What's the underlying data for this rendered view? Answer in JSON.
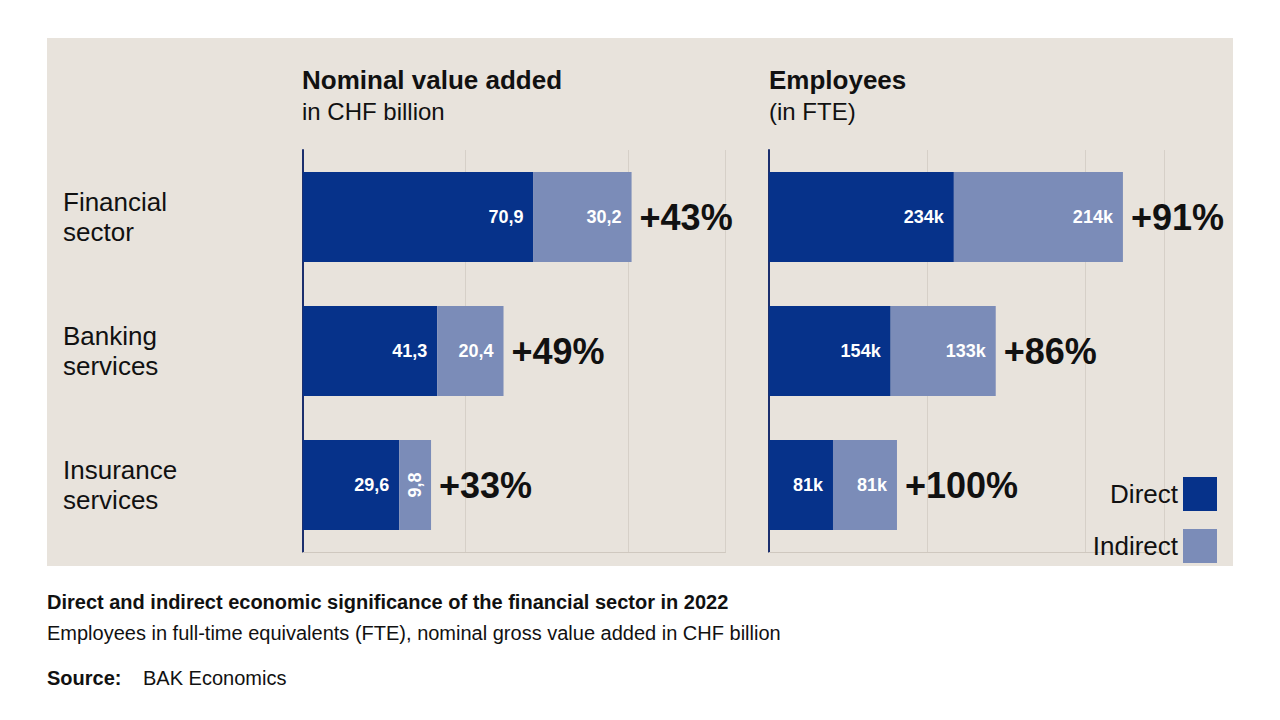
{
  "title": "Direct and indirect economic significance of the financial sector in 2022",
  "subtitle": "Employees in full-time equivalents (FTE), nominal gross value added in CHF billion",
  "source": {
    "label": "Source:",
    "text": "BAK Economics"
  },
  "chart_data": [
    {
      "type": "bar",
      "title": "Nominal value added",
      "subtitle": "in CHF billion",
      "orientation": "horizontal",
      "stacked": true,
      "data_labels": true,
      "grid": true,
      "tick_labels": "y",
      "categories": [
        "Financial sector",
        "Banking services",
        "Insurance services"
      ],
      "series": [
        {
          "name": "Direct",
          "color": "#06328a",
          "values": [
            70.9,
            41.3,
            29.6
          ],
          "value_labels": [
            "70,9",
            "41,3",
            "29,6"
          ]
        },
        {
          "name": "Indirect",
          "color": "#7b8cb8",
          "values": [
            30.2,
            20.4,
            9.8
          ],
          "value_labels": [
            "30,2",
            "20,4",
            "9,8"
          ]
        }
      ],
      "annotations": [
        "+43%",
        "+49%",
        "+33%"
      ],
      "xlim": [
        0,
        130
      ],
      "xticks": [
        0,
        50,
        100
      ]
    },
    {
      "type": "bar",
      "title": "Employees",
      "subtitle": "(in FTE)",
      "orientation": "horizontal",
      "stacked": true,
      "data_labels": true,
      "grid": true,
      "tick_labels": false,
      "legend": "lower right",
      "categories": [
        "Financial sector",
        "Banking services",
        "Insurance services"
      ],
      "series": [
        {
          "name": "Direct",
          "color": "#06328a",
          "values": [
            234000,
            154000,
            81000
          ],
          "value_labels": [
            "234k",
            "154k",
            "81k"
          ]
        },
        {
          "name": "Indirect",
          "color": "#7b8cb8",
          "values": [
            214000,
            133000,
            81000
          ],
          "value_labels": [
            "214k",
            "133k",
            "81k"
          ]
        }
      ],
      "annotations": [
        "+91%",
        "+86%",
        "+100%"
      ],
      "xlim": [
        0,
        500000
      ],
      "xticks": [
        0,
        200000,
        400000
      ]
    }
  ]
}
